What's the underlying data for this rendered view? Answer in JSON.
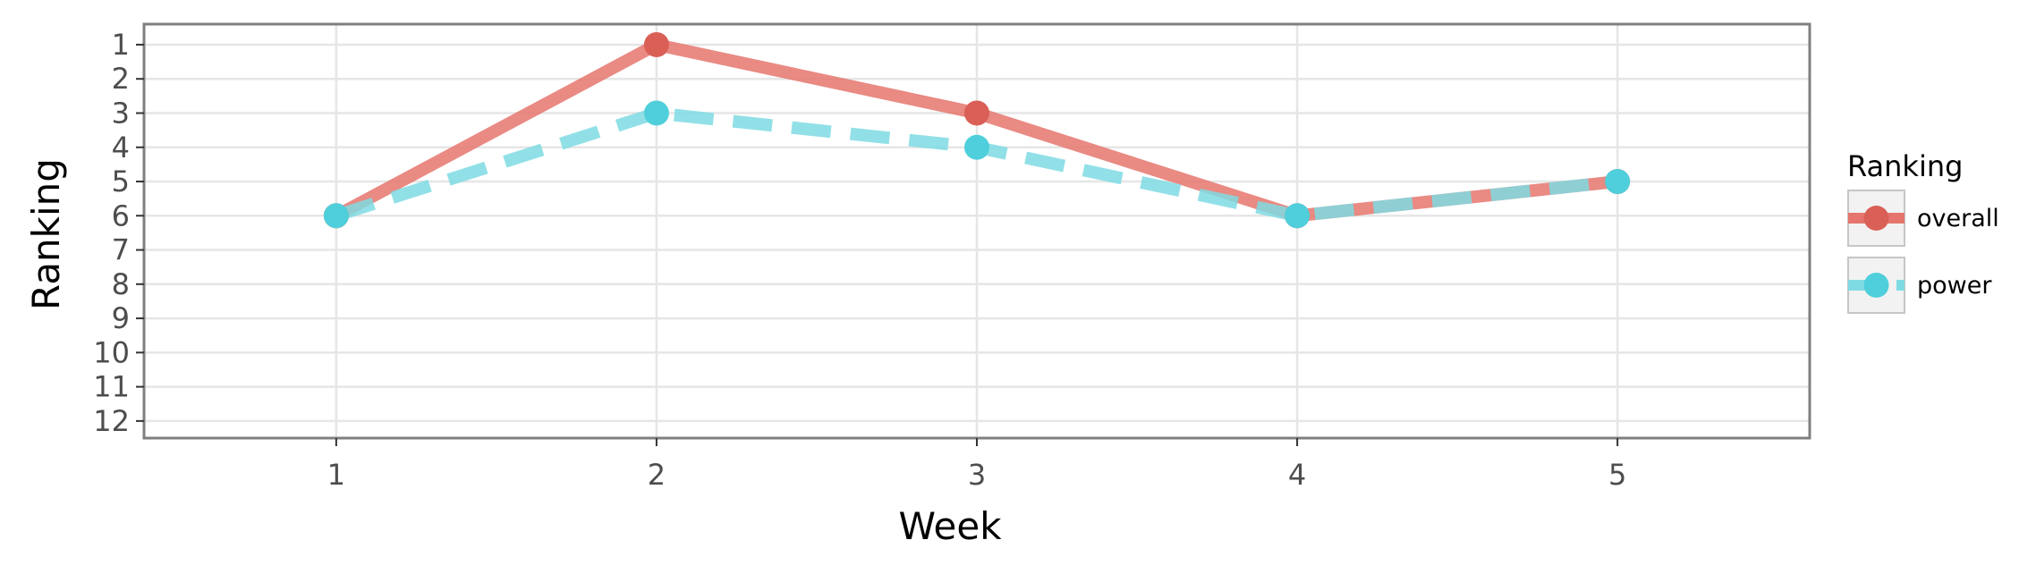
{
  "chart_data": {
    "type": "line",
    "xlabel": "Week",
    "ylabel": "Ranking",
    "x": [
      1,
      2,
      3,
      4,
      5
    ],
    "x_ticks": [
      "1",
      "2",
      "3",
      "4",
      "5"
    ],
    "y_ticks": [
      "1",
      "2",
      "3",
      "4",
      "5",
      "6",
      "7",
      "8",
      "9",
      "10",
      "11",
      "12"
    ],
    "xlim": [
      0.4,
      5.6
    ],
    "ylim": [
      12.5,
      0.4
    ],
    "y_reversed": true,
    "grid": true,
    "legend": {
      "title": "Ranking",
      "position": "right"
    },
    "series": [
      {
        "name": "overall",
        "x": [
          1,
          2,
          3,
          4,
          5
        ],
        "values": [
          6,
          1,
          3,
          6,
          5
        ],
        "color": "#e5756d",
        "point_color": "#d95f57",
        "line_style": "solid"
      },
      {
        "name": "power",
        "x": [
          1,
          2,
          3,
          4,
          5
        ],
        "values": [
          6,
          3,
          4,
          6,
          5
        ],
        "color": "#7fdbe3",
        "point_color": "#4fcfdb",
        "line_style": "dashed"
      }
    ]
  }
}
